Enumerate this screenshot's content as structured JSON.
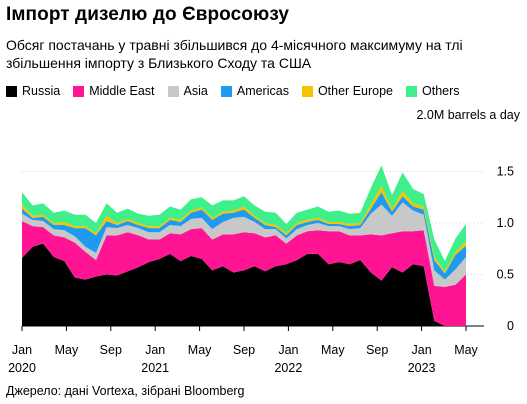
{
  "header": {
    "title": "Імпорт дизелю до Євросоюзу",
    "subtitle": "Обсяг постачань у травні збільшився до 4-місячного максимуму на тлі збільшення імпорту з Близького Сходу та США"
  },
  "legend": [
    {
      "label": "Russia",
      "color": "#000000"
    },
    {
      "label": "Middle East",
      "color": "#ff1493"
    },
    {
      "label": "Asia",
      "color": "#c8c8c8"
    },
    {
      "label": "Americas",
      "color": "#1e9bf0"
    },
    {
      "label": "Other Europe",
      "color": "#f5c400"
    },
    {
      "label": "Others",
      "color": "#3ff08a"
    }
  ],
  "unit_label": "2.0M barrels a day",
  "source": "Джерело: дані Vortexa, зібрані Bloomberg",
  "chart_data": {
    "type": "area",
    "stacked": true,
    "ylim": [
      0,
      2.0
    ],
    "yticks": [
      "0",
      "0.5",
      "1.0",
      "1.5"
    ],
    "ytick_values": [
      0,
      0.5,
      1.0,
      1.5
    ],
    "xticks": [
      {
        "label": "Jan",
        "year": "2020",
        "index": 0
      },
      {
        "label": "May",
        "year": "",
        "index": 4.2
      },
      {
        "label": "Sep",
        "year": "",
        "index": 8.4
      },
      {
        "label": "Jan",
        "year": "2021",
        "index": 12.6
      },
      {
        "label": "May",
        "year": "",
        "index": 16.8
      },
      {
        "label": "Sep",
        "year": "",
        "index": 21
      },
      {
        "label": "Jan",
        "year": "2022",
        "index": 25.2
      },
      {
        "label": "May",
        "year": "",
        "index": 29.4
      },
      {
        "label": "Sep",
        "year": "",
        "index": 33.6
      },
      {
        "label": "Jan",
        "year": "2023",
        "index": 37.8
      },
      {
        "label": "May",
        "year": "",
        "index": 42
      }
    ],
    "series": [
      {
        "name": "Russia",
        "color": "#000000",
        "values": [
          0.66,
          0.77,
          0.8,
          0.67,
          0.63,
          0.47,
          0.45,
          0.48,
          0.5,
          0.49,
          0.53,
          0.57,
          0.62,
          0.65,
          0.7,
          0.63,
          0.68,
          0.65,
          0.54,
          0.58,
          0.52,
          0.54,
          0.58,
          0.53,
          0.58,
          0.6,
          0.64,
          0.7,
          0.7,
          0.6,
          0.62,
          0.6,
          0.64,
          0.52,
          0.44,
          0.57,
          0.52,
          0.6,
          0.58,
          0.05,
          0.0,
          0.0,
          0.0
        ]
      },
      {
        "name": "Middle East",
        "color": "#ff1493",
        "values": [
          0.36,
          0.2,
          0.16,
          0.21,
          0.23,
          0.34,
          0.27,
          0.16,
          0.38,
          0.39,
          0.38,
          0.31,
          0.22,
          0.19,
          0.2,
          0.26,
          0.26,
          0.3,
          0.3,
          0.31,
          0.37,
          0.37,
          0.32,
          0.33,
          0.3,
          0.2,
          0.24,
          0.22,
          0.23,
          0.32,
          0.3,
          0.28,
          0.24,
          0.37,
          0.44,
          0.33,
          0.4,
          0.32,
          0.35,
          0.34,
          0.38,
          0.4,
          0.5
        ]
      },
      {
        "name": "Asia",
        "color": "#c8c8c8",
        "values": [
          0.07,
          0.06,
          0.06,
          0.06,
          0.07,
          0.06,
          0.05,
          0.07,
          0.08,
          0.07,
          0.07,
          0.07,
          0.07,
          0.07,
          0.08,
          0.08,
          0.1,
          0.1,
          0.1,
          0.12,
          0.16,
          0.15,
          0.11,
          0.08,
          0.06,
          0.05,
          0.06,
          0.06,
          0.07,
          0.05,
          0.05,
          0.06,
          0.07,
          0.2,
          0.3,
          0.17,
          0.28,
          0.2,
          0.15,
          0.15,
          0.07,
          0.15,
          0.17
        ]
      },
      {
        "name": "Americas",
        "color": "#1e9bf0",
        "values": [
          0.05,
          0.02,
          0.04,
          0.04,
          0.05,
          0.08,
          0.18,
          0.17,
          0.06,
          0.03,
          0.04,
          0.03,
          0.04,
          0.04,
          0.05,
          0.04,
          0.06,
          0.08,
          0.09,
          0.08,
          0.05,
          0.07,
          0.04,
          0.04,
          0.02,
          0.03,
          0.04,
          0.03,
          0.03,
          0.02,
          0.02,
          0.03,
          0.03,
          0.05,
          0.12,
          0.04,
          0.06,
          0.04,
          0.05,
          0.1,
          0.06,
          0.14,
          0.11
        ]
      },
      {
        "name": "Other Europe",
        "color": "#f5c400",
        "values": [
          0.04,
          0.02,
          0.02,
          0.02,
          0.03,
          0.02,
          0.02,
          0.02,
          0.05,
          0.02,
          0.02,
          0.02,
          0.02,
          0.02,
          0.02,
          0.02,
          0.02,
          0.02,
          0.02,
          0.02,
          0.02,
          0.03,
          0.02,
          0.02,
          0.02,
          0.02,
          0.02,
          0.02,
          0.02,
          0.02,
          0.02,
          0.02,
          0.02,
          0.04,
          0.06,
          0.03,
          0.05,
          0.03,
          0.03,
          0.03,
          0.02,
          0.03,
          0.04
        ]
      },
      {
        "name": "Others",
        "color": "#3ff08a",
        "values": [
          0.12,
          0.1,
          0.11,
          0.1,
          0.11,
          0.11,
          0.11,
          0.1,
          0.12,
          0.1,
          0.1,
          0.09,
          0.1,
          0.11,
          0.11,
          0.1,
          0.11,
          0.1,
          0.12,
          0.11,
          0.1,
          0.1,
          0.1,
          0.11,
          0.12,
          0.09,
          0.1,
          0.1,
          0.11,
          0.1,
          0.11,
          0.1,
          0.1,
          0.16,
          0.2,
          0.13,
          0.18,
          0.14,
          0.12,
          0.17,
          0.1,
          0.13,
          0.17
        ]
      }
    ]
  }
}
